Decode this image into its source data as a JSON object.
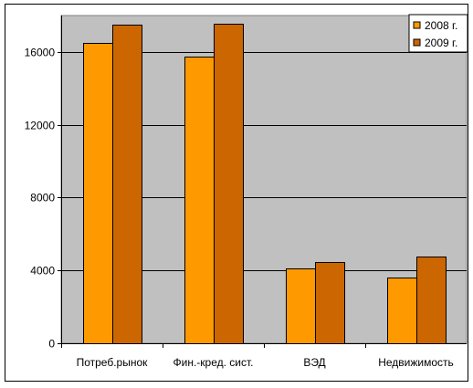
{
  "chart_data": {
    "type": "bar",
    "categories": [
      "Потреб.рынок",
      "Фин.-кред. сист.",
      "ВЭД",
      "Недвижимость"
    ],
    "series": [
      {
        "name": "2008 г.",
        "color": "#FF9900",
        "values": [
          16500,
          15750,
          4100,
          3600
        ]
      },
      {
        "name": "2009 г.",
        "color": "#CC6600",
        "values": [
          17500,
          17550,
          4450,
          4750
        ]
      }
    ],
    "y_ticks": [
      "0",
      "4000",
      "8000",
      "12000",
      "16000"
    ],
    "ylim": [
      0,
      18000
    ],
    "y_tick_step": 4000,
    "grid": true,
    "plot_background": "#C0C0C0",
    "legend_position": "top-right",
    "title": "",
    "xlabel": "",
    "ylabel": ""
  }
}
